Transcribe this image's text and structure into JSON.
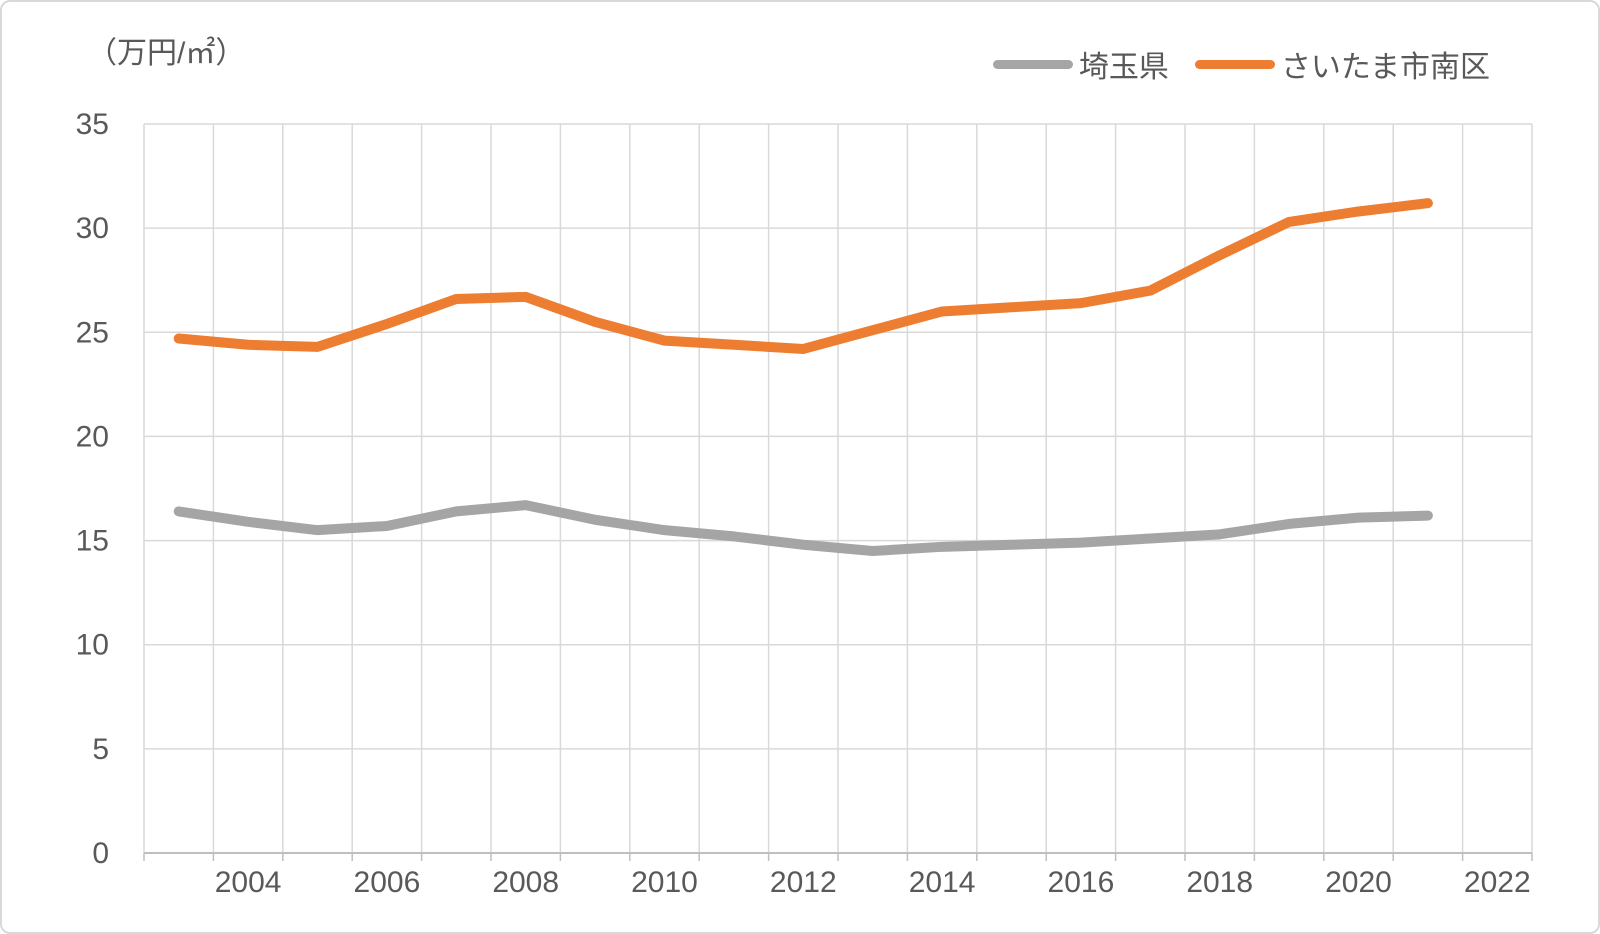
{
  "chart_data": {
    "type": "line",
    "unit_label": "（万円/㎡）",
    "categories": [
      2003,
      2004,
      2005,
      2006,
      2007,
      2008,
      2009,
      2010,
      2011,
      2012,
      2013,
      2014,
      2015,
      2016,
      2017,
      2018,
      2019,
      2020,
      2021
    ],
    "series": [
      {
        "name": "埼玉県",
        "color": "#a5a5a5",
        "values": [
          16.4,
          15.9,
          15.5,
          15.7,
          16.4,
          16.7,
          16.0,
          15.5,
          15.2,
          14.8,
          14.5,
          14.7,
          14.8,
          14.9,
          15.1,
          15.3,
          15.8,
          16.1,
          16.2
        ]
      },
      {
        "name": "さいたま市南区",
        "color": "#ed7d31",
        "values": [
          24.7,
          24.4,
          24.3,
          25.4,
          26.6,
          26.7,
          25.5,
          24.6,
          24.4,
          24.2,
          25.1,
          26.0,
          26.2,
          26.4,
          27.0,
          28.7,
          30.3,
          30.8,
          31.2
        ]
      }
    ],
    "ylim": [
      0,
      35
    ],
    "ytick_step": 5,
    "ytick_labels": [
      "0",
      "5",
      "10",
      "15",
      "20",
      "25",
      "30",
      "35"
    ],
    "x_axis_ticklabels": [
      "2004",
      "2006",
      "2008",
      "2010",
      "2012",
      "2014",
      "2016",
      "2018",
      "2020",
      "2022"
    ],
    "x_categories_total": 20,
    "grid": true,
    "legend_position": "top-right",
    "colors": {
      "gridline": "#d9d9d9",
      "axis_line": "#bfbfbf",
      "tick_text": "#595959"
    }
  }
}
